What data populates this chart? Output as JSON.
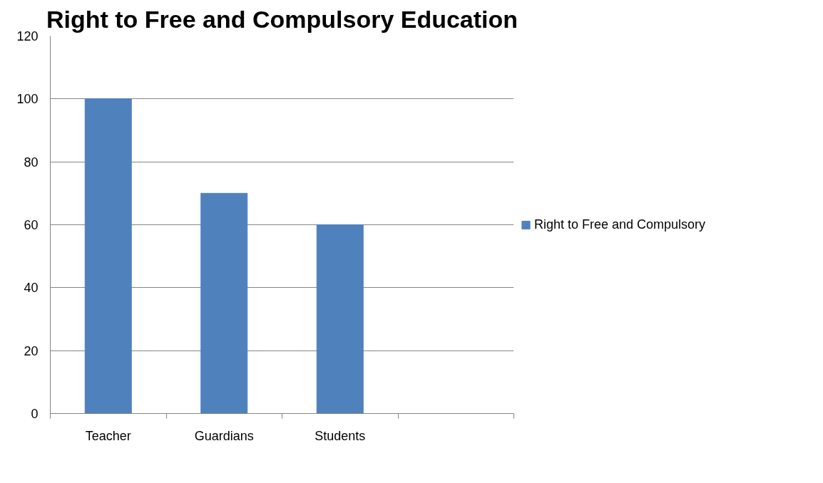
{
  "chart_data": {
    "type": "bar",
    "title": "Right to Free and Compulsory Education",
    "categories": [
      "Teacher",
      "Guardians",
      "Students",
      null
    ],
    "series": [
      {
        "name": "Right to Free and Compulsory",
        "color": "#4f81bd",
        "values": [
          100,
          70,
          60,
          null
        ]
      }
    ],
    "ylim": [
      0,
      120
    ],
    "yticks": [
      0,
      20,
      40,
      60,
      80,
      100,
      120
    ],
    "grid": "y",
    "legend": "right"
  }
}
